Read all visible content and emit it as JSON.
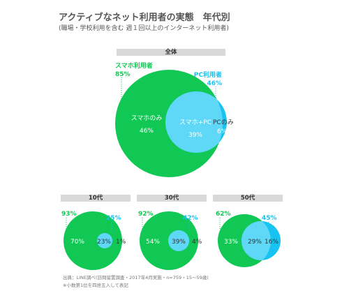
{
  "header": {
    "title": "アクティブなネット利用者の実態　年代別",
    "subtitle": "(職場・学校利用を含む 週１回以上のインターネット利用者)"
  },
  "colors": {
    "smartphone": "#12c855",
    "pc": "#18c3f1",
    "overlap": "#5fd8f7",
    "band": "#d9d9d9"
  },
  "chart_data": [
    {
      "type": "venn",
      "group": "全体",
      "sets": [
        {
          "name": "スマホ利用者",
          "total": 85
        },
        {
          "name": "PC利用者",
          "total": 46
        }
      ],
      "regions": [
        {
          "label": "スマホのみ",
          "value": 46
        },
        {
          "label": "スマホ+PC",
          "value": 39
        },
        {
          "label": "PCのみ",
          "value": 6
        }
      ]
    },
    {
      "type": "venn",
      "group": "10代",
      "sets": [
        {
          "total": 93
        },
        {
          "total": 25
        }
      ],
      "regions": [
        {
          "value": 70
        },
        {
          "value": 23
        },
        {
          "value": 1
        }
      ]
    },
    {
      "type": "venn",
      "group": "30代",
      "sets": [
        {
          "total": 92
        },
        {
          "total": 42
        }
      ],
      "regions": [
        {
          "value": 54
        },
        {
          "value": 39
        },
        {
          "value": 4
        }
      ]
    },
    {
      "type": "venn",
      "group": "50代",
      "sets": [
        {
          "total": 62
        },
        {
          "total": 45
        }
      ],
      "regions": [
        {
          "value": 33
        },
        {
          "value": 29
        },
        {
          "value": 16
        }
      ]
    }
  ],
  "labels": {
    "big_smartphone_name": "スマホ利用者",
    "big_smartphone_total": "85%",
    "big_pc_name": "PC利用者",
    "big_pc_total": "46%",
    "big_only_sp_name": "スマホのみ",
    "big_only_sp_value": "46%",
    "big_both_name": "スマホ+PC",
    "big_both_value": "39%",
    "big_only_pc_name": "PCのみ",
    "big_only_pc_value": "6%",
    "t10_sp_total": "93%",
    "t10_pc_total": "25%",
    "t10_only_sp": "70%",
    "t10_both": "23%",
    "t10_only_pc": "1%",
    "t30_sp_total": "92%",
    "t30_pc_total": "42%",
    "t30_only_sp": "54%",
    "t30_both": "39%",
    "t30_only_pc": "4%",
    "t50_sp_total": "62%",
    "t50_pc_total": "45%",
    "t50_only_sp": "33%",
    "t50_both": "29%",
    "t50_only_pc": "16%"
  },
  "footer": {
    "source": "出典：LINE調べ(訪問留置調査・2017年4月実施・n=759・15～59歳)",
    "note": "※小数第1位を四捨五入して表記"
  }
}
